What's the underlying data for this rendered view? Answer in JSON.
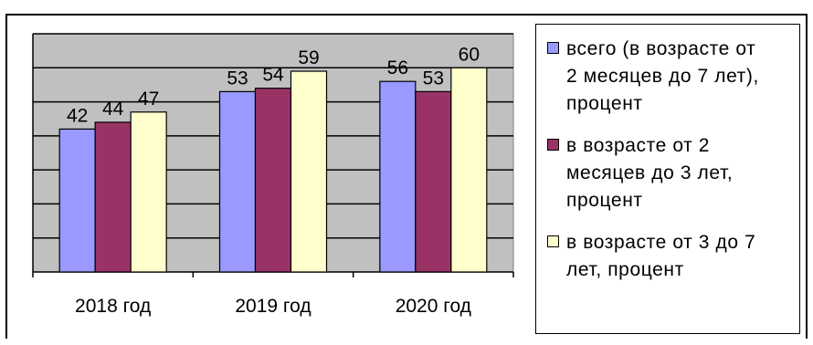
{
  "chart_data": {
    "type": "bar",
    "categories": [
      "2018 год",
      "2019 год",
      "2020 год"
    ],
    "series": [
      {
        "name": "всего (в возрасте от 2 месяцев до 7 лет), процент",
        "values": [
          42,
          53,
          56
        ],
        "color": "#9999FF"
      },
      {
        "name": "в возрасте от 2 месяцев до 3 лет, процент",
        "values": [
          44,
          54,
          53
        ],
        "color": "#993366"
      },
      {
        "name": "в возрасте от 3 до 7 лет, процент",
        "values": [
          47,
          59,
          60
        ],
        "color": "#FFFFCC"
      }
    ],
    "ylim": [
      0,
      70
    ],
    "grid": true,
    "legend": "right",
    "plot_background": "#C0C0C0"
  },
  "legend": {
    "items": [
      {
        "label": "всего (в возрасте от\n2 месяцев до 7 лет),\nпроцент",
        "color": "#9999FF"
      },
      {
        "label": "в возрасте от 2\nмесяцев до 3 лет,\nпроцент",
        "color": "#993366"
      },
      {
        "label": "в возрасте от 3 до 7\nлет, процент",
        "color": "#FFFFCC"
      }
    ]
  }
}
